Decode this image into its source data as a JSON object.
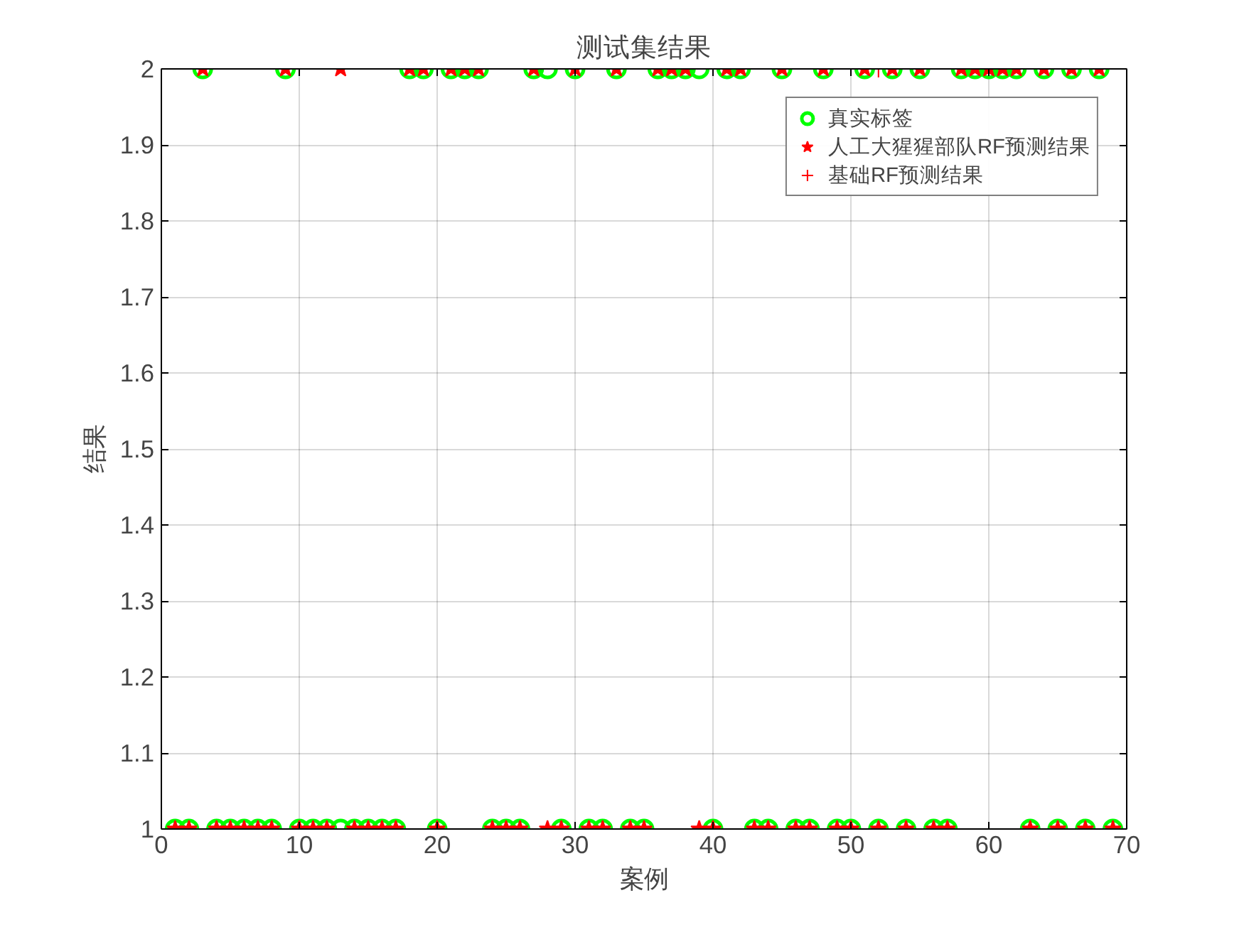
{
  "chart_data": {
    "type": "scatter",
    "title": "测试集结果",
    "xlabel": "案例",
    "ylabel": "结果",
    "x": [
      1,
      2,
      3,
      4,
      5,
      6,
      7,
      8,
      9,
      10,
      11,
      12,
      13,
      14,
      15,
      16,
      17,
      18,
      19,
      20,
      21,
      22,
      23,
      24,
      25,
      26,
      27,
      28,
      29,
      30,
      31,
      32,
      33,
      34,
      35,
      36,
      37,
      38,
      39,
      40,
      41,
      42,
      43,
      44,
      45,
      46,
      47,
      48,
      49,
      50,
      51,
      52,
      53,
      54,
      55,
      56,
      57,
      58,
      59,
      60,
      61,
      62,
      63,
      64,
      65,
      66,
      67,
      68,
      69
    ],
    "series": [
      {
        "name": "真实标签",
        "color": "#00ff00",
        "marker": "circle",
        "values": [
          1,
          1,
          2,
          1,
          1,
          1,
          1,
          1,
          2,
          1,
          1,
          1,
          1,
          1,
          1,
          1,
          1,
          2,
          2,
          1,
          2,
          2,
          2,
          1,
          1,
          1,
          2,
          2,
          1,
          2,
          1,
          1,
          2,
          1,
          1,
          2,
          2,
          2,
          2,
          1,
          2,
          2,
          1,
          1,
          2,
          1,
          1,
          2,
          1,
          1,
          2,
          1,
          2,
          1,
          2,
          1,
          1,
          2,
          2,
          2,
          2,
          2,
          1,
          2,
          1,
          2,
          1,
          2,
          1
        ]
      },
      {
        "name": "人工大猩猩部队RF预测结果",
        "color": "#ff0000",
        "marker": "star",
        "values": [
          1,
          1,
          2,
          1,
          1,
          1,
          1,
          1,
          2,
          1,
          1,
          1,
          2,
          1,
          1,
          1,
          1,
          2,
          2,
          1,
          2,
          2,
          2,
          1,
          1,
          1,
          2,
          1,
          1,
          2,
          1,
          1,
          2,
          1,
          1,
          2,
          2,
          2,
          1,
          1,
          2,
          2,
          1,
          1,
          2,
          1,
          1,
          2,
          1,
          1,
          2,
          1,
          2,
          1,
          2,
          1,
          1,
          2,
          2,
          2,
          2,
          2,
          1,
          2,
          1,
          2,
          1,
          2,
          1
        ]
      },
      {
        "name": "基础RF预测结果",
        "color": "#ff0000",
        "marker": "cross",
        "values": [
          null,
          null,
          null,
          null,
          null,
          null,
          null,
          null,
          null,
          null,
          null,
          null,
          null,
          null,
          null,
          null,
          null,
          null,
          null,
          null,
          null,
          null,
          null,
          null,
          null,
          null,
          null,
          null,
          null,
          null,
          null,
          null,
          null,
          null,
          null,
          null,
          null,
          null,
          null,
          null,
          null,
          null,
          null,
          null,
          null,
          null,
          null,
          null,
          null,
          null,
          null,
          2,
          null,
          null,
          null,
          null,
          null,
          null,
          null,
          null,
          null,
          null,
          null,
          null,
          null,
          null,
          null,
          null,
          null
        ]
      }
    ],
    "xlim": [
      0,
      70
    ],
    "ylim": [
      1,
      2
    ],
    "xticks": [
      0,
      10,
      20,
      30,
      40,
      50,
      60,
      70
    ],
    "yticks": [
      1,
      {
        "value": 1.1,
        "label": "1.1"
      },
      {
        "value": 1.2,
        "label": "1.2"
      },
      {
        "value": 1.3,
        "label": "1.3"
      },
      {
        "value": 1.4,
        "label": "1.4"
      },
      {
        "value": 1.5,
        "label": "1.5"
      },
      {
        "value": 1.6,
        "label": "1.6"
      },
      {
        "value": 1.7,
        "label": "1.7"
      },
      {
        "value": 1.8,
        "label": "1.8"
      },
      {
        "value": 1.9,
        "label": "1.9"
      },
      2
    ],
    "grid": true,
    "legend": "top right"
  }
}
